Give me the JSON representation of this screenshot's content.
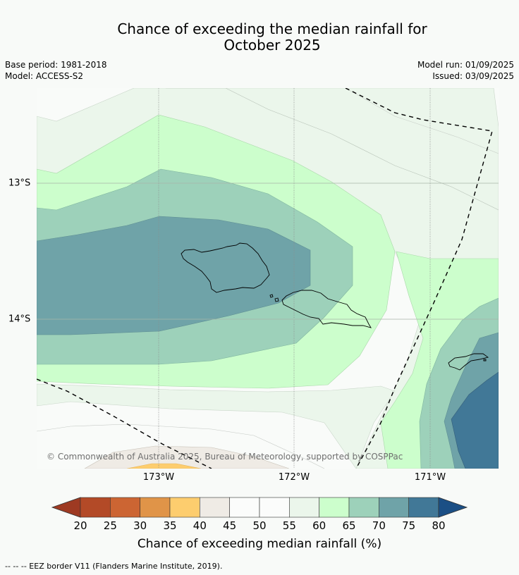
{
  "title_line1": "Chance of exceeding the median rainfall for",
  "title_line2": "October 2025",
  "meta": {
    "base_period": "Base period: 1981-2018",
    "model": "Model: ACCESS-S2",
    "model_run": "Model run: 01/09/2025",
    "issued": "Issued: 03/09/2025"
  },
  "map": {
    "lon_labels": [
      "173°W",
      "172°W",
      "171°W"
    ],
    "lat_labels": [
      "13°S",
      "14°S"
    ],
    "copyright": "© Commonwealth of Australia 2025, Bureau of Meteorology, supported by COSPPac"
  },
  "colorbar": {
    "ticks": [
      "20",
      "25",
      "30",
      "35",
      "40",
      "45",
      "50",
      "55",
      "60",
      "65",
      "70",
      "75",
      "80"
    ],
    "colors": [
      "#9e3a22",
      "#b34a27",
      "#cc6533",
      "#e09448",
      "#fdcd6e",
      "#efebe5",
      "#fbfcfb",
      "#fbfcfb",
      "#ebf6eb",
      "#ccfecc",
      "#9dd1ba",
      "#6fa3a8",
      "#417897",
      "#1b4f85"
    ],
    "title": "Chance of exceeding median rainfall (%)"
  },
  "footnote": "--  --  -- EEZ border V11 (Flanders Marine Institute, 2019)."
}
